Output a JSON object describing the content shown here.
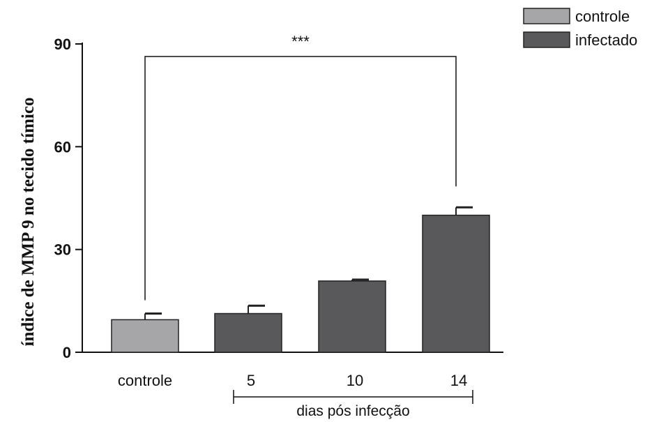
{
  "chart_data": {
    "type": "bar",
    "ylabel": "índice de MMP 9 no tecido tímico",
    "ylim": [
      0,
      90
    ],
    "yticks": [
      0,
      30,
      60,
      90
    ],
    "categories": [
      "controle",
      "5",
      "10",
      "14"
    ],
    "values": [
      9.5,
      11.3,
      20.8,
      40.0
    ],
    "errors": [
      1.8,
      2.3,
      0.4,
      2.3
    ],
    "groups": [
      "controle",
      "infectado",
      "infectado",
      "infectado"
    ],
    "group_axis_label": "dias pós infecção",
    "significance": {
      "label": "***",
      "from": "controle",
      "to": "14"
    },
    "legend": [
      {
        "label": "controle",
        "color": "#a6a6a8"
      },
      {
        "label": "infectado",
        "color": "#59595b"
      }
    ],
    "legend_position": "top-right",
    "grid": false
  }
}
